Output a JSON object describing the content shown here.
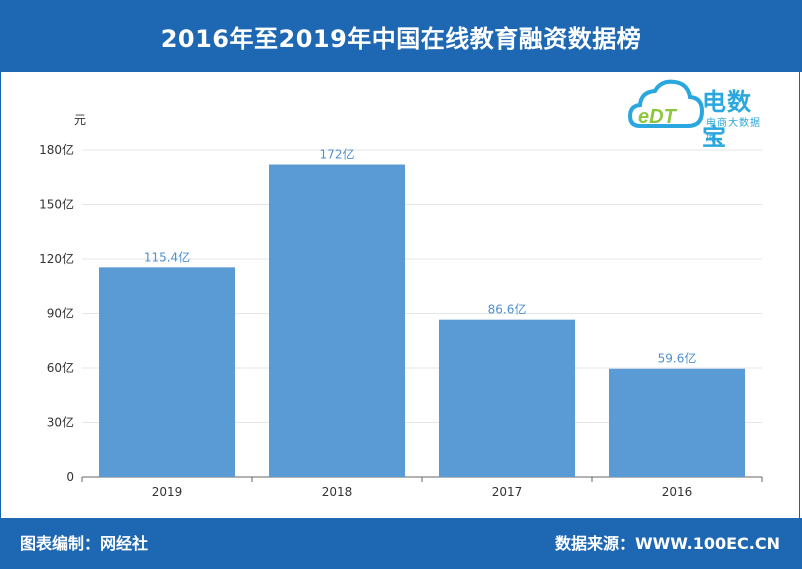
{
  "header": {
    "title": "2016年至2019年中国在线教育融资数据榜"
  },
  "footer": {
    "left": "图表编制：网经社",
    "right": "数据来源：WWW.100EC.CN"
  },
  "logo": {
    "brand": "电数宝",
    "sub": "电商大数据库",
    "mark": "eDT"
  },
  "chart_data": {
    "type": "bar",
    "categories": [
      "2019",
      "2018",
      "2017",
      "2016"
    ],
    "values": [
      115.4,
      172,
      86.6,
      59.6
    ],
    "data_labels": [
      "115.4亿",
      "172亿",
      "86.6亿",
      "59.6亿"
    ],
    "y_unit": "元",
    "y_ticks": [
      0,
      30,
      60,
      90,
      120,
      150,
      180
    ],
    "y_tick_labels": [
      "0",
      "30亿",
      "60亿",
      "90亿",
      "120亿",
      "150亿",
      "180亿"
    ],
    "ylim": [
      0,
      180
    ],
    "grid": true,
    "colors": {
      "bar": "#5b9bd5",
      "label": "#4f8fd0"
    }
  }
}
